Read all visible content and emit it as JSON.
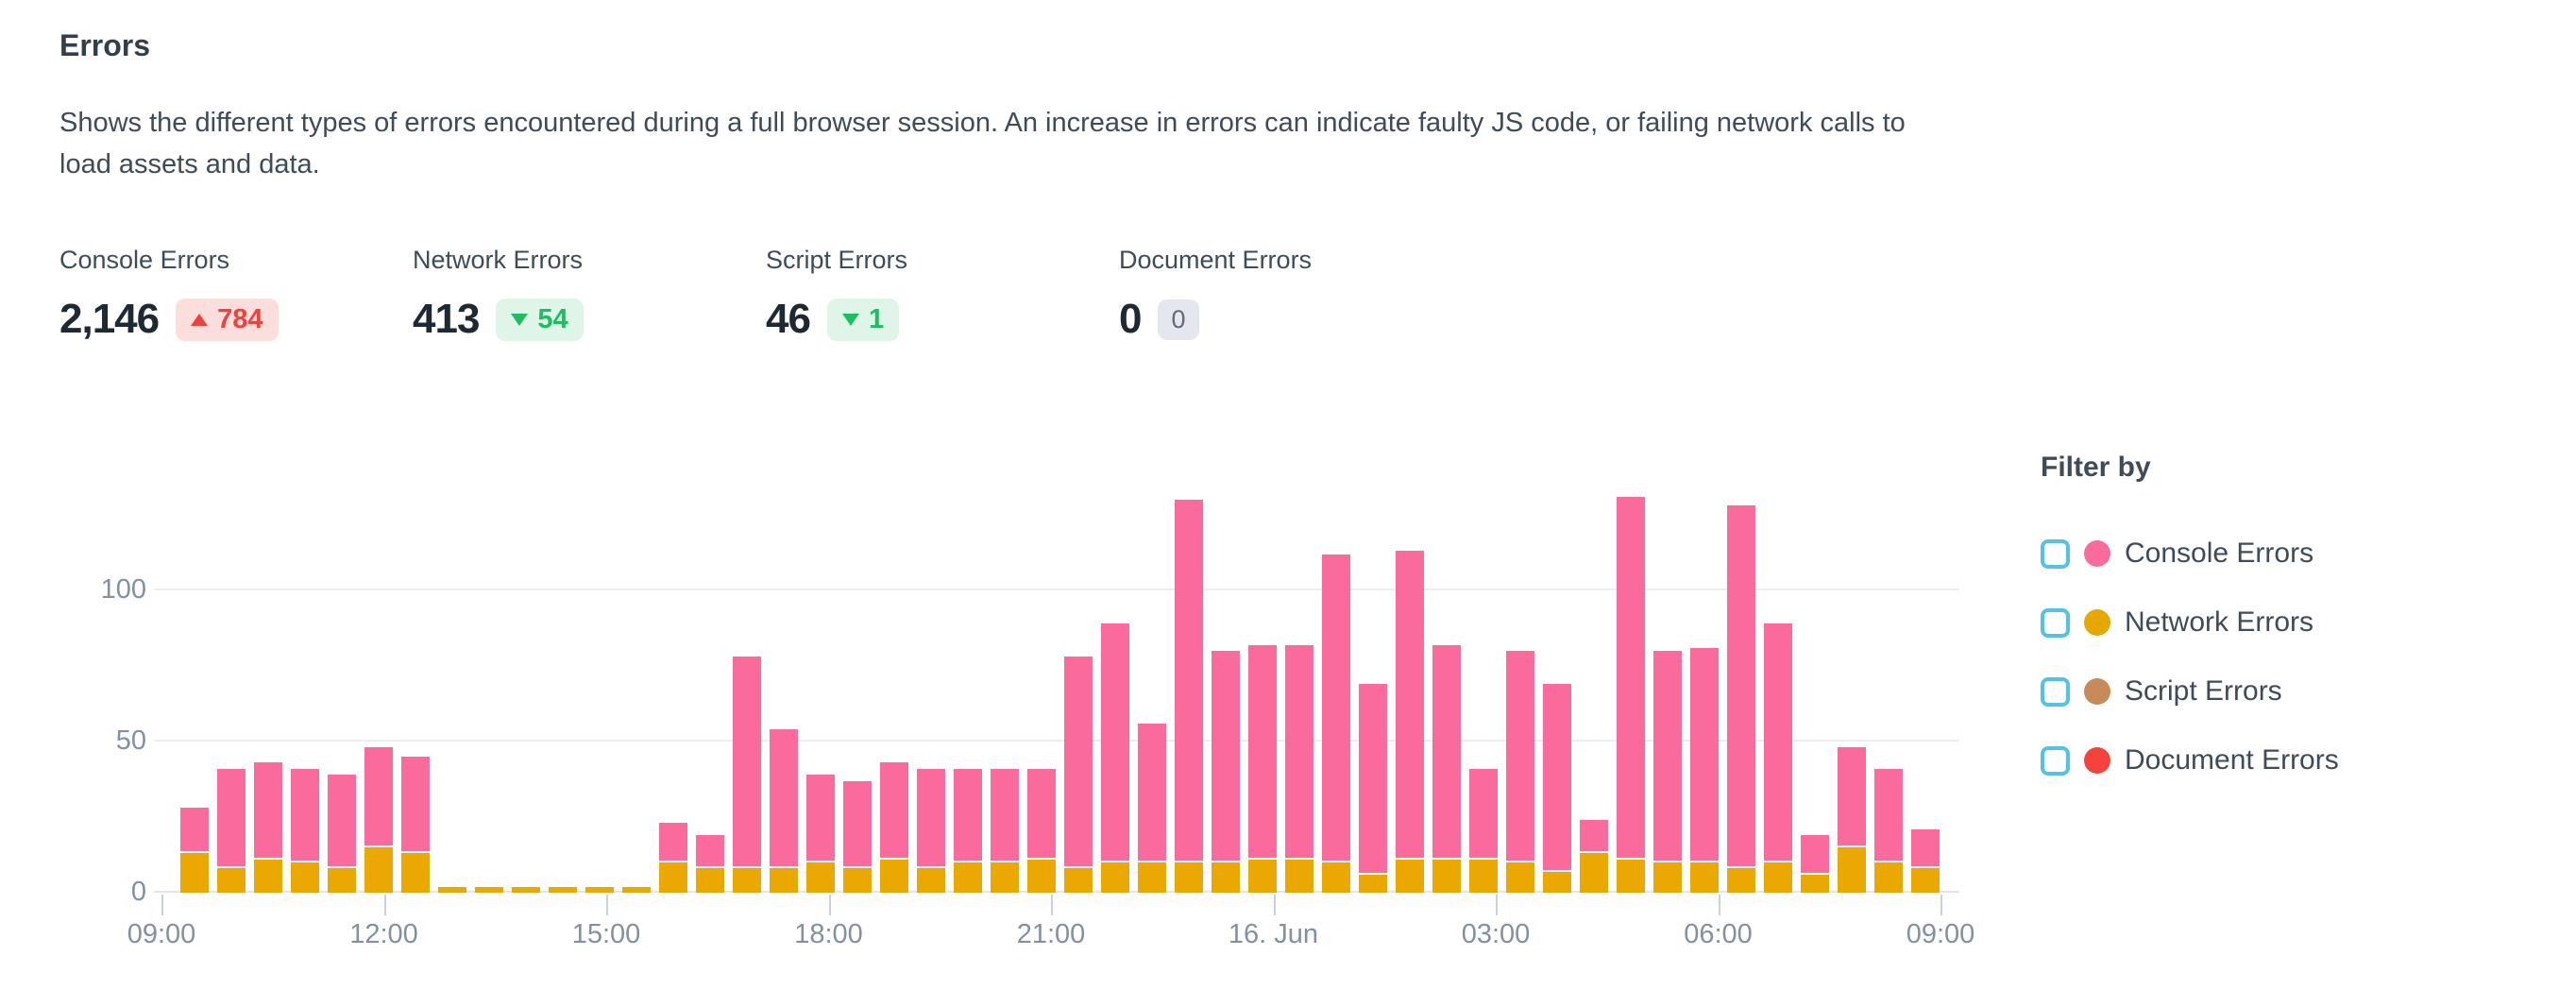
{
  "header": {
    "title": "Errors",
    "description": "Shows the different types of errors encountered during a full browser session. An increase in errors can indicate faulty JS code, or failing network calls to load assets and data."
  },
  "stats": [
    {
      "label": "Console Errors",
      "value": "2,146",
      "delta": "784",
      "direction": "up",
      "sentiment": "bad"
    },
    {
      "label": "Network Errors",
      "value": "413",
      "delta": "54",
      "direction": "down",
      "sentiment": "good"
    },
    {
      "label": "Script Errors",
      "value": "46",
      "delta": "1",
      "direction": "down",
      "sentiment": "good"
    },
    {
      "label": "Document Errors",
      "value": "0",
      "delta": "0",
      "direction": "none",
      "sentiment": "neutral"
    }
  ],
  "legend": {
    "title": "Filter by",
    "items": [
      {
        "label": "Console Errors",
        "color": "#fb6a9c",
        "checked": false
      },
      {
        "label": "Network Errors",
        "color": "#e5a800",
        "checked": false
      },
      {
        "label": "Script Errors",
        "color": "#c78a59",
        "checked": false
      },
      {
        "label": "Document Errors",
        "color": "#f4433c",
        "checked": false
      }
    ]
  },
  "colors": {
    "console_bar": "#fb6a9c",
    "network_bar": "#eba801",
    "checkbox_accent": "#4fc3e8",
    "delta_up_red": "#f0413c",
    "delta_down_green": "#1fbd62",
    "axis_text": "#8290a3"
  },
  "chart_data": {
    "type": "bar",
    "stacked": true,
    "grid": "horizontal",
    "legend_position": "right",
    "xlabel": "",
    "ylabel": "",
    "ylim": [
      0,
      148
    ],
    "y_ticks": [
      0,
      50,
      100
    ],
    "x_tick_labels": [
      "09:00",
      "12:00",
      "15:00",
      "18:00",
      "21:00",
      "16. Jun",
      "03:00",
      "06:00",
      "09:00"
    ],
    "categories": [
      "09:30",
      "10:00",
      "10:30",
      "11:00",
      "11:30",
      "12:00",
      "12:30",
      "13:00",
      "13:30",
      "14:00",
      "14:30",
      "15:00",
      "15:30",
      "16:00",
      "16:30",
      "17:00",
      "17:30",
      "18:00",
      "18:30",
      "19:00",
      "19:30",
      "20:00",
      "20:30",
      "21:00",
      "21:30",
      "22:00",
      "22:30",
      "23:00",
      "23:30",
      "00:00",
      "00:30",
      "01:00",
      "01:30",
      "02:00",
      "02:30",
      "03:00",
      "03:30",
      "04:00",
      "04:30",
      "05:00",
      "05:30",
      "06:00",
      "06:30",
      "07:00",
      "07:30",
      "08:00",
      "08:30",
      "09:00"
    ],
    "series": [
      {
        "name": "Network Errors",
        "color": "#eba801",
        "values": [
          13,
          8,
          11,
          10,
          8,
          15,
          13,
          2,
          2,
          2,
          2,
          2,
          2,
          10,
          8,
          8,
          8,
          10,
          8,
          11,
          8,
          10,
          10,
          11,
          8,
          10,
          10,
          10,
          10,
          11,
          11,
          10,
          6,
          11,
          11,
          11,
          10,
          7,
          13,
          11,
          10,
          10,
          8,
          10,
          6,
          15,
          10,
          8
        ]
      },
      {
        "name": "Console Errors",
        "color": "#fb6a9c",
        "values": [
          15,
          33,
          32,
          31,
          31,
          33,
          32,
          0,
          0,
          0,
          0,
          0,
          0,
          13,
          11,
          70,
          46,
          29,
          29,
          32,
          33,
          31,
          31,
          30,
          70,
          79,
          46,
          120,
          70,
          71,
          71,
          102,
          63,
          102,
          71,
          30,
          70,
          62,
          11,
          120,
          70,
          71,
          120,
          79,
          13,
          33,
          31,
          13
        ]
      }
    ]
  }
}
